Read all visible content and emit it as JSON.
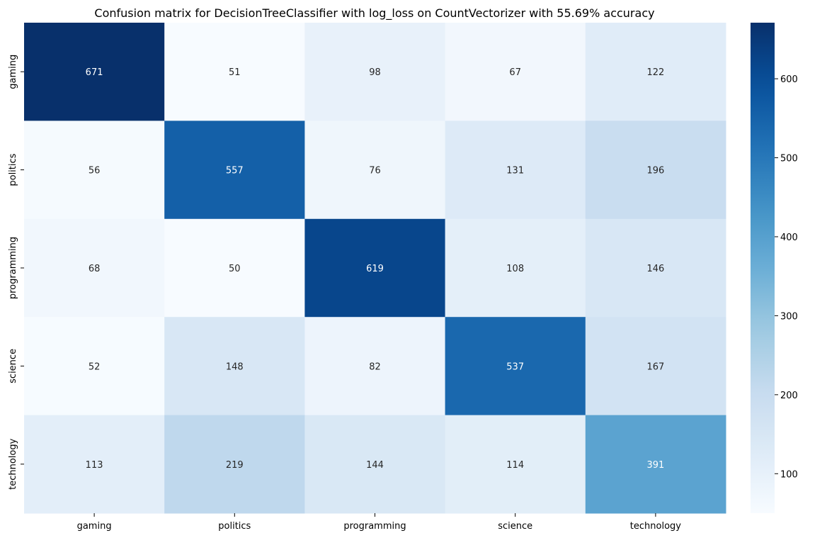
{
  "chart_data": {
    "type": "heatmap",
    "title": "Confusion matrix for DecisionTreeClassifier with log_loss on CountVectorizer with 55.69% accuracy",
    "xlabel": "",
    "ylabel": "",
    "x_categories": [
      "gaming",
      "politics",
      "programming",
      "science",
      "technology"
    ],
    "y_categories": [
      "gaming",
      "politics",
      "programming",
      "science",
      "technology"
    ],
    "values": [
      [
        671,
        51,
        98,
        67,
        122
      ],
      [
        56,
        557,
        76,
        131,
        196
      ],
      [
        68,
        50,
        619,
        108,
        146
      ],
      [
        52,
        148,
        82,
        537,
        167
      ],
      [
        113,
        219,
        144,
        114,
        391
      ]
    ],
    "colormap": "Blues",
    "colorbar": {
      "min": 50,
      "max": 671,
      "ticks": [
        100,
        200,
        300,
        400,
        500,
        600
      ]
    },
    "legend": "colorbar-right",
    "grid": false
  }
}
